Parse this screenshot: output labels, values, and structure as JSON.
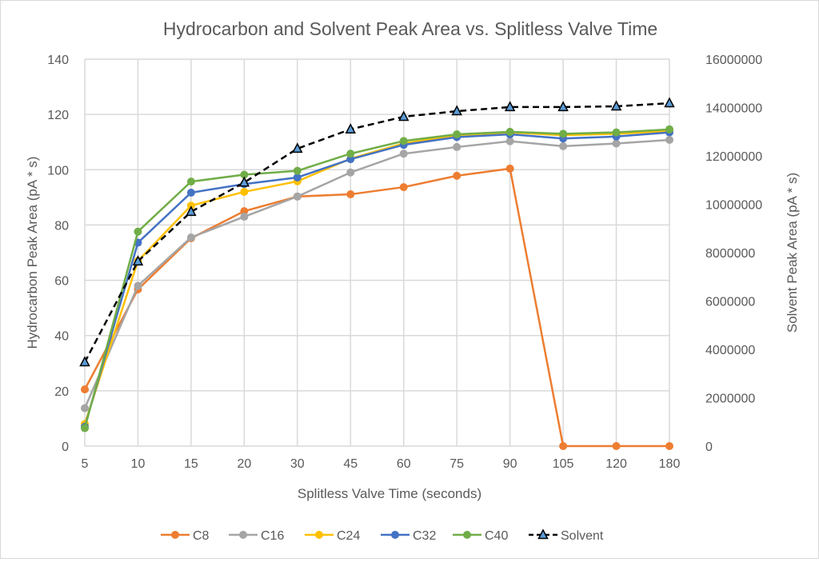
{
  "chart_data": {
    "type": "line",
    "title": "Hydrocarbon and Solvent Peak Area vs. Splitless Valve Time",
    "xlabel": "Splitless Valve Time (seconds)",
    "ylabel": "Hydrocarbon Peak Area (pA * s)",
    "y2label": "Solvent Peak Area (pA * s)",
    "categories": [
      "5",
      "10",
      "15",
      "20",
      "30",
      "45",
      "60",
      "75",
      "90",
      "105",
      "120",
      "180"
    ],
    "ylim": [
      0,
      140
    ],
    "yticks": [
      0,
      20,
      40,
      60,
      80,
      100,
      120,
      140
    ],
    "y2lim": [
      0,
      16000000
    ],
    "y2ticks": [
      0,
      2000000,
      4000000,
      6000000,
      8000000,
      10000000,
      12000000,
      14000000,
      16000000
    ],
    "grid": true,
    "legend": "bottom",
    "series": [
      {
        "name": "C8",
        "axis": "left",
        "color": "#ED7D31",
        "marker": "circle",
        "values": [
          20.5,
          56.7,
          75.2,
          85,
          90.3,
          91.1,
          93.7,
          97.8,
          100.4,
          0,
          0,
          0
        ]
      },
      {
        "name": "C16",
        "axis": "left",
        "color": "#A5A5A5",
        "marker": "circle",
        "values": [
          13.7,
          58,
          75.5,
          83,
          90.3,
          99,
          105.8,
          108.2,
          110.3,
          108.5,
          109.5,
          110.8
        ]
      },
      {
        "name": "C24",
        "axis": "left",
        "color": "#FFC000",
        "marker": "circle",
        "values": [
          8,
          67,
          87,
          92,
          95.8,
          104,
          109.5,
          112.5,
          113.5,
          112.5,
          113,
          114
        ]
      },
      {
        "name": "C32",
        "axis": "left",
        "color": "#4472C4",
        "marker": "circle",
        "values": [
          7,
          73.6,
          91.7,
          94.8,
          97.2,
          103.8,
          109,
          111.8,
          112.8,
          111.3,
          112,
          113.5
        ]
      },
      {
        "name": "C40",
        "axis": "left",
        "color": "#70AD47",
        "marker": "circle",
        "values": [
          6.5,
          77.6,
          95.7,
          98.2,
          99.6,
          105.8,
          110.4,
          112.8,
          113.7,
          113,
          113.5,
          114.6
        ]
      },
      {
        "name": "Solvent",
        "axis": "right",
        "color": "#000000",
        "marker": "triangle",
        "marker_fill": "#5B9BD5",
        "dash": true,
        "values": [
          3470000,
          7640000,
          9690000,
          10900000,
          12300000,
          13100000,
          13620000,
          13850000,
          14020000,
          14020000,
          14050000,
          14180000
        ]
      }
    ]
  }
}
